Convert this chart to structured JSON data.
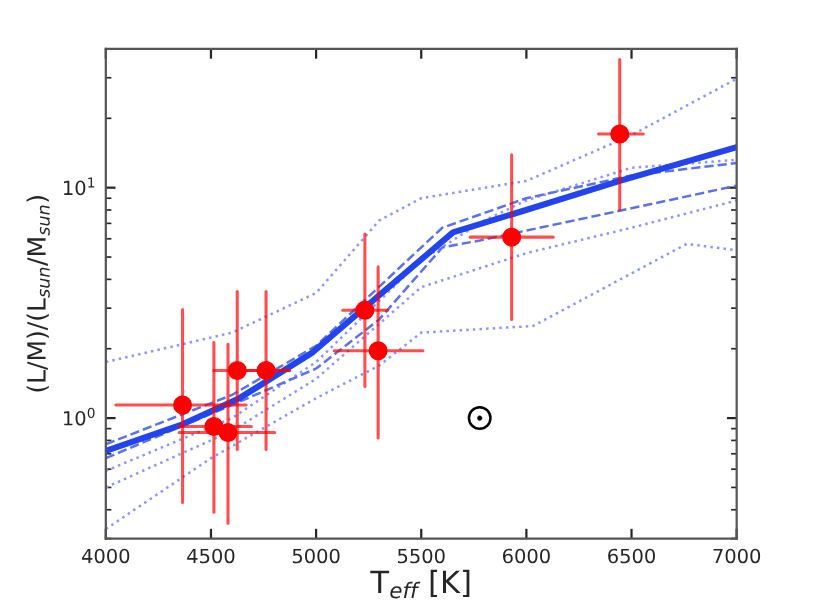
{
  "chart_data": {
    "type": "line",
    "xlabel": "T$_{eff}$ [K]",
    "ylabel": "(L/M)/(L$_{sun}$/M$_{sun}$)",
    "log": "y",
    "xlim": [
      4000,
      7000
    ],
    "ylim": [
      0.3,
      40
    ],
    "xticks": [
      4000,
      4500,
      5000,
      5500,
      6000,
      6500,
      7000
    ],
    "yticks": [
      {
        "value": 1,
        "label": "10$^{0}$"
      },
      {
        "value": 10,
        "label": "10$^{1}$"
      }
    ],
    "grid": false,
    "legend": false,
    "series": [
      {
        "line_style": "dotted",
        "color": "#8a96ff",
        "x": [
          4000,
          4600,
          5000,
          5300,
          5500,
          6000,
          6500,
          7000
        ],
        "values": [
          1.75,
          2.35,
          3.49,
          7.2,
          9.0,
          10.7,
          16.9,
          29.7
        ]
      },
      {
        "line_style": "dotted",
        "color": "#8a96ff",
        "x": [
          4000,
          4600,
          5000,
          5500,
          5800,
          6000,
          6500,
          7000
        ],
        "values": [
          0.59,
          1.0,
          1.75,
          4.85,
          7.2,
          8.8,
          12.2,
          13.2
        ]
      },
      {
        "line_style": "dotted",
        "color": "#8a96ff",
        "x": [
          4000,
          4600,
          5000,
          5500,
          6000,
          6500,
          7000
        ],
        "values": [
          0.5,
          0.88,
          1.48,
          3.7,
          5.2,
          6.7,
          8.8
        ]
      },
      {
        "line_style": "dotted",
        "color": "#8a96ff",
        "x": [
          4000,
          4500,
          5000,
          5300,
          5500,
          6032,
          6762,
          7000
        ],
        "values": [
          0.33,
          0.67,
          1.22,
          1.69,
          2.35,
          2.51,
          5.7,
          5.35
        ]
      },
      {
        "line_style": "dashed",
        "color": "#5a72f0",
        "x": [
          4000,
          4600,
          5000,
          5600,
          6000,
          6500,
          7000
        ],
        "values": [
          0.77,
          1.26,
          2.06,
          6.7,
          9.0,
          11.3,
          12.8
        ]
      },
      {
        "line_style": "dashed",
        "color": "#5a72f0",
        "x": [
          4000,
          4600,
          5000,
          5300,
          5600,
          5778,
          6444,
          7000
        ],
        "values": [
          0.67,
          1.14,
          1.64,
          2.68,
          5.5,
          5.9,
          7.94,
          10.2
        ]
      },
      {
        "line_style": "solid",
        "color": "#2244ee",
        "x": [
          4000,
          4365,
          4635,
          4984,
          5232,
          5651,
          5937,
          6444,
          7000
        ],
        "values": [
          0.72,
          0.94,
          1.22,
          1.93,
          3.02,
          6.4,
          7.69,
          10.7,
          15.0
        ]
      },
      {
        "type": "scatter",
        "marker": "circle",
        "color": "#ff0000",
        "x": [
          4365,
          4514,
          4581,
          4625,
          4762,
          5232,
          5295,
          5930,
          6444
        ],
        "values": [
          1.14,
          0.92,
          0.865,
          1.61,
          1.61,
          2.94,
          1.96,
          6.1,
          17.1
        ],
        "errors": [
          [
            0.43,
            2.96
          ],
          [
            0.39,
            2.13
          ],
          [
            0.35,
            2.09
          ],
          [
            0.73,
            3.54
          ],
          [
            0.73,
            3.54
          ],
          [
            1.37,
            6.3
          ],
          [
            0.82,
            4.54
          ],
          [
            2.68,
            13.9
          ],
          [
            8.05,
            36
          ]
        ],
        "xerrors": [
          [
            4048,
            4667
          ],
          [
            4349,
            4692
          ],
          [
            4349,
            4803
          ],
          [
            4514,
            4873
          ],
          [
            4650,
            4873
          ],
          [
            5127,
            5340
          ],
          [
            5086,
            5508
          ],
          [
            5733,
            6127
          ],
          [
            6343,
            6556
          ]
        ]
      },
      {
        "type": "scatter",
        "marker": "circle",
        "color": "#000000",
        "x": [
          5778
        ],
        "values": [
          1.0
        ]
      }
    ]
  }
}
